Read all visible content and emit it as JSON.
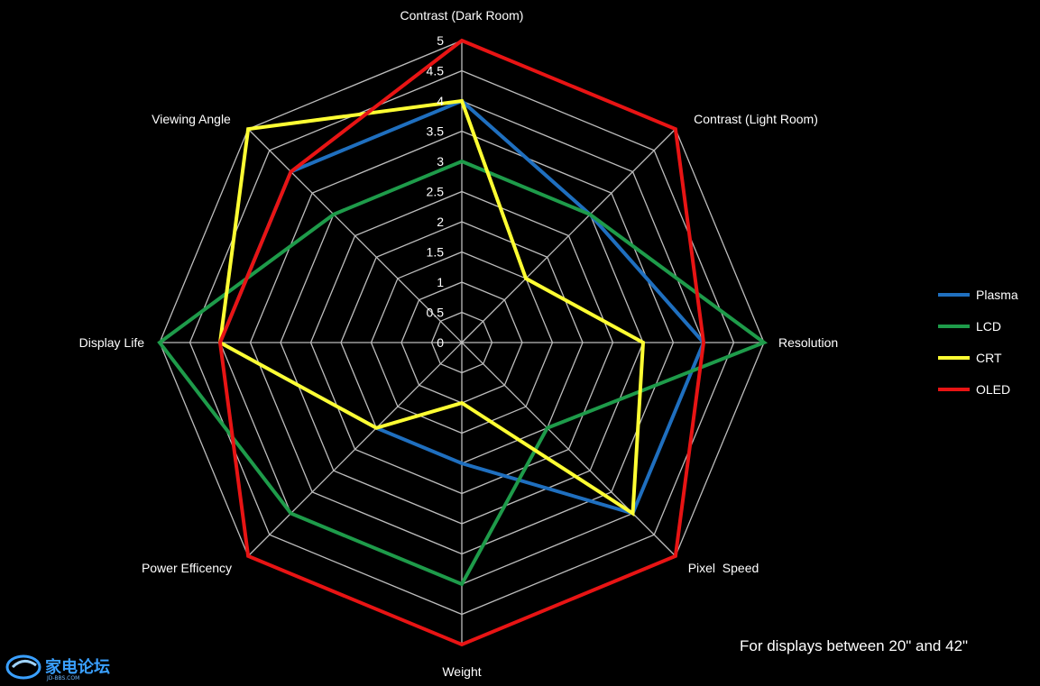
{
  "chart_data": {
    "type": "radar",
    "axes": [
      "Contrast (Dark Room)",
      "Contrast (Light Room)",
      "Resolution",
      "Pixel  Speed",
      "Weight",
      "Power Efficency",
      "Display Life",
      "Viewing Angle"
    ],
    "ticks": [
      "0",
      "0.5",
      "1",
      "1.5",
      "2",
      "2.5",
      "3",
      "3.5",
      "4",
      "4.5",
      "5"
    ],
    "range": [
      0,
      5
    ],
    "grid": true,
    "legend_position": "right",
    "series": [
      {
        "name": "Plasma",
        "color": "#1f6fbf",
        "values": [
          4,
          3,
          4,
          4,
          2,
          2,
          4,
          4
        ]
      },
      {
        "name": "LCD",
        "color": "#1e9b4a",
        "values": [
          3,
          3,
          5,
          2,
          4,
          4,
          5,
          3
        ]
      },
      {
        "name": "CRT",
        "color": "#ffff33",
        "values": [
          4,
          1.5,
          3,
          4,
          1,
          2,
          4,
          5
        ]
      },
      {
        "name": "OLED",
        "color": "#e81414",
        "values": [
          5,
          5,
          4,
          5,
          5,
          5,
          4,
          4
        ]
      }
    ]
  },
  "note": "For displays between 20\" and 42\"",
  "watermark": "家电论坛"
}
